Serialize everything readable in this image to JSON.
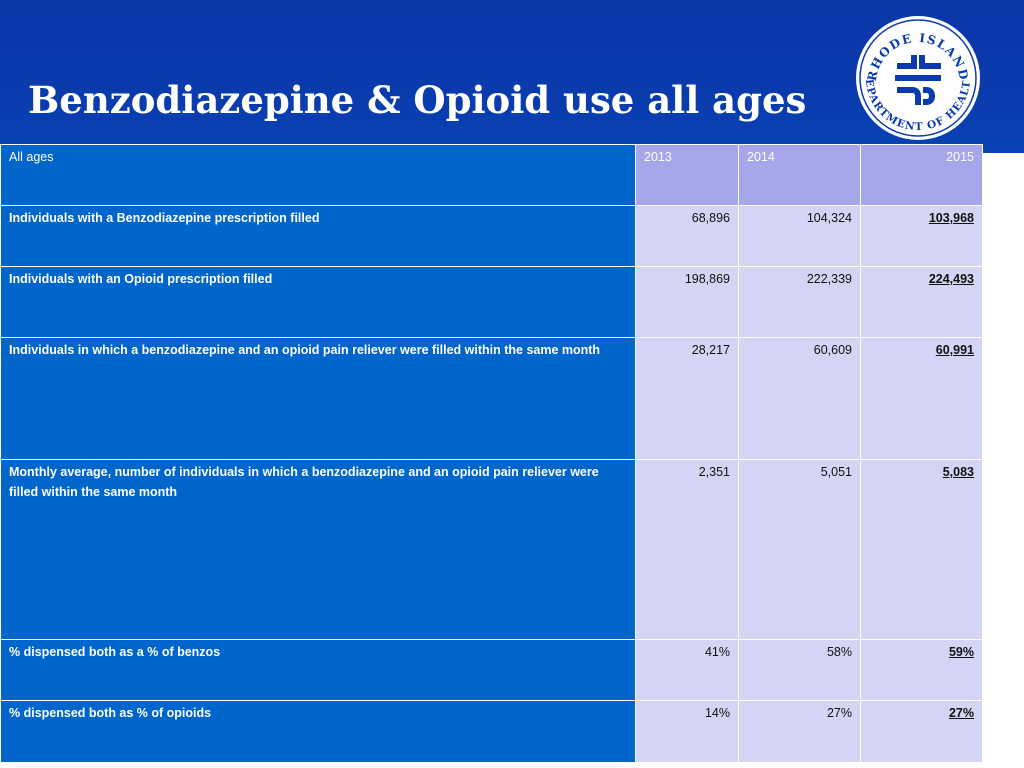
{
  "slide": {
    "title": "Benzodiazepine & Opioid use all ages"
  },
  "logo": {
    "icon": "rhode-island-department-of-health-seal",
    "text": "RHODE ISLAND DEPARTMENT OF HEALTH"
  },
  "colors": {
    "header_band": "#0a3aac",
    "label_cell": "#0066cc",
    "value_cell": "#d4d4f4",
    "header_value_cell": "#a6a6ec"
  },
  "table": {
    "corner_label": "All ages",
    "columns": [
      "2013",
      "2014",
      "2015"
    ],
    "rows": [
      {
        "label": "Individuals with a Benzodiazepine prescription filled",
        "values": [
          "68,896",
          "104,324",
          "103,968"
        ]
      },
      {
        "label": "Individuals with an Opioid prescription filled",
        "values": [
          "198,869",
          "222,339",
          "224,493"
        ]
      },
      {
        "label": "Individuals in which a benzodiazepine and an opioid pain reliever were filled within the same month",
        "values": [
          "28,217",
          "60,609",
          "60,991"
        ]
      },
      {
        "label": "Monthly average, number of individuals in which a benzodiazepine and an opioid pain reliever were filled within the same month",
        "values": [
          "2,351",
          "5,051",
          "5,083"
        ]
      },
      {
        "label": "% dispensed both as a % of benzos",
        "values": [
          "41%",
          "58%",
          "59%"
        ]
      },
      {
        "label": "% dispensed both as % of opioids",
        "values": [
          "14%",
          "27%",
          "27%"
        ]
      }
    ]
  }
}
